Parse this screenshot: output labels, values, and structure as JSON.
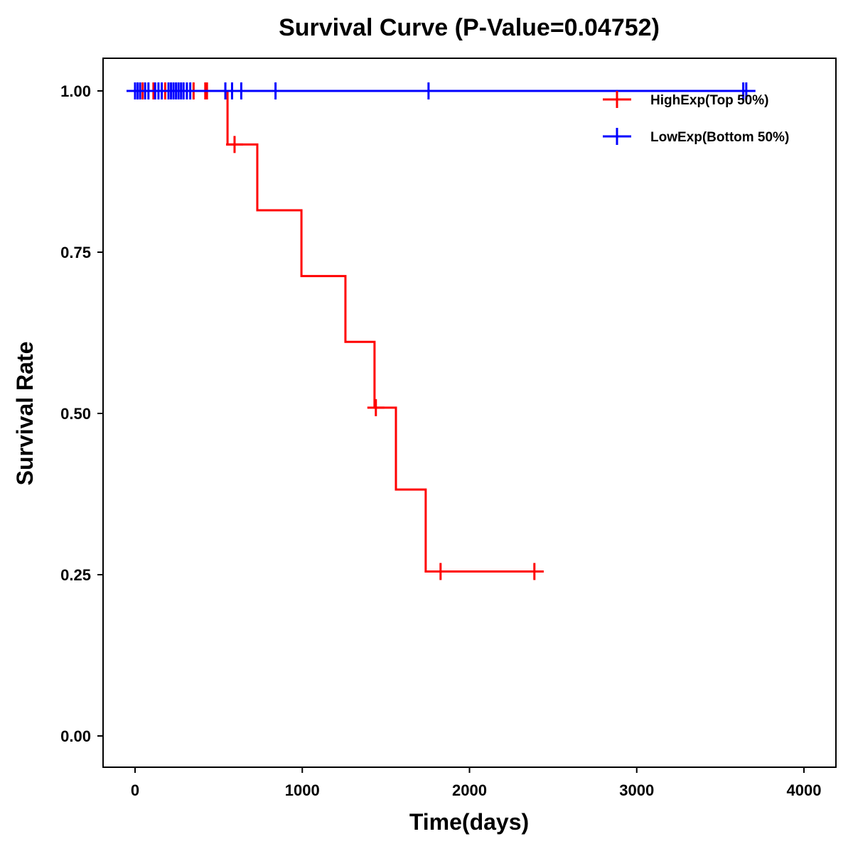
{
  "chart_data": {
    "type": "line",
    "title": "Survival Curve (P-Value=0.04752)",
    "xlabel": "Time(days)",
    "ylabel": "Survival Rate",
    "xlim": [
      -190,
      4200
    ],
    "ylim": [
      -0.05,
      1.05
    ],
    "xticks": [
      "0",
      "1000",
      "2000",
      "3000",
      "4000"
    ],
    "yticks": [
      "0.00",
      "0.25",
      "0.50",
      "0.75",
      "1.00"
    ],
    "legend_position": "top-right",
    "series": [
      {
        "name": "HighExp(Top 50%)",
        "color": "#FF0000",
        "steps": [
          [
            0,
            1.0
          ],
          [
            553,
            0.917
          ],
          [
            731,
            0.815
          ],
          [
            995,
            0.713
          ],
          [
            1258,
            0.611
          ],
          [
            1432,
            0.509
          ],
          [
            1560,
            0.382
          ],
          [
            1738,
            0.255
          ]
        ],
        "end_time": 2444,
        "censored": [
          [
            45,
            1.0
          ],
          [
            110,
            1.0
          ],
          [
            180,
            1.0
          ],
          [
            350,
            1.0
          ],
          [
            420,
            1.0
          ],
          [
            430,
            1.0
          ],
          [
            595,
            0.917
          ],
          [
            1440,
            0.509
          ],
          [
            1827,
            0.255
          ],
          [
            2388,
            0.255
          ]
        ]
      },
      {
        "name": "LowExp(Bottom 50%)",
        "color": "#0000FF",
        "steps": [
          [
            0,
            1.0
          ]
        ],
        "start_time": -50,
        "end_time": 3710,
        "censored": [
          [
            0,
            1.0
          ],
          [
            15,
            1.0
          ],
          [
            30,
            1.0
          ],
          [
            60,
            1.0
          ],
          [
            80,
            1.0
          ],
          [
            120,
            1.0
          ],
          [
            140,
            1.0
          ],
          [
            160,
            1.0
          ],
          [
            200,
            1.0
          ],
          [
            215,
            1.0
          ],
          [
            230,
            1.0
          ],
          [
            245,
            1.0
          ],
          [
            260,
            1.0
          ],
          [
            275,
            1.0
          ],
          [
            290,
            1.0
          ],
          [
            310,
            1.0
          ],
          [
            330,
            1.0
          ],
          [
            540,
            1.0
          ],
          [
            580,
            1.0
          ],
          [
            635,
            1.0
          ],
          [
            840,
            1.0
          ],
          [
            1755,
            1.0
          ],
          [
            3637,
            1.0
          ],
          [
            3655,
            1.0
          ]
        ]
      }
    ]
  }
}
